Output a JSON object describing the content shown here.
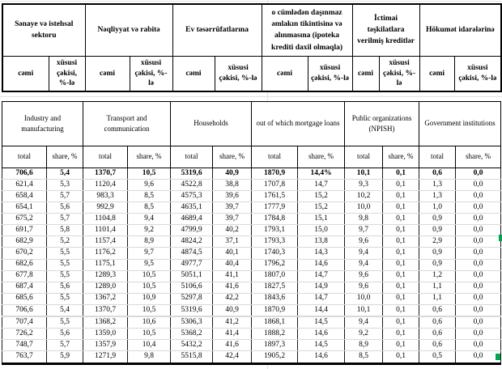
{
  "az_header": {
    "groups": [
      "Sənaye və istehsal sektoru",
      "Nəqliyyat və rabitə",
      "Ev təsərrüfatlarına",
      "o cümlədən daşınmaz əmlakın tikintisinə və alınmasına (ipoteka krediti daxil olmaqla)",
      "İctimai təşkilatlara verilmiş kreditlər",
      "Hökumət idarələrinə"
    ],
    "sub": [
      "cəmi",
      "xüsusi çəkisi, %-lə"
    ]
  },
  "en_header": {
    "groups": [
      "Industry and manufacturing",
      "Transport and communication",
      "Households",
      "out of which mortgage loans",
      "Public organizations (NPISH)",
      "Government institutions"
    ],
    "sub": [
      "total",
      "share, %"
    ]
  },
  "table": {
    "bold_row_index": 0,
    "separator_row_index": 13,
    "rows": [
      [
        "706,6",
        "5,4",
        "1370,7",
        "10,5",
        "5319,6",
        "40,9",
        "1870,9",
        "14,4%",
        "10,1",
        "0,1",
        "0,6",
        "0,0"
      ],
      [
        "621,4",
        "5,3",
        "1120,4",
        "9,6",
        "4522,8",
        "38,8",
        "1707,8",
        "14,7",
        "9,3",
        "0,1",
        "1,3",
        "0,0"
      ],
      [
        "658,4",
        "5,7",
        "983,3",
        "8,5",
        "4575,3",
        "39,6",
        "1761,5",
        "15,2",
        "10,2",
        "0,1",
        "1,3",
        "0,0"
      ],
      [
        "654,1",
        "5,6",
        "992,9",
        "8,5",
        "4635,1",
        "39,7",
        "1777,9",
        "15,2",
        "10,0",
        "0,1",
        "1,0",
        "0,0"
      ],
      [
        "675,2",
        "5,7",
        "1104,8",
        "9,4",
        "4689,4",
        "39,7",
        "1784,8",
        "15,1",
        "9,8",
        "0,1",
        "0,9",
        "0,0"
      ],
      [
        "691,7",
        "5,8",
        "1101,4",
        "9,2",
        "4799,9",
        "40,2",
        "1793,1",
        "15,0",
        "9,7",
        "0,1",
        "0,9",
        "0,0"
      ],
      [
        "682,9",
        "5,2",
        "1157,4",
        "8,9",
        "4824,2",
        "37,1",
        "1793,3",
        "13,8",
        "9,6",
        "0,1",
        "2,9",
        "0,0"
      ],
      [
        "670,2",
        "5,5",
        "1176,2",
        "9,7",
        "4874,5",
        "40,1",
        "1740,3",
        "14,3",
        "9,4",
        "0,1",
        "0,9",
        "0,0"
      ],
      [
        "682,6",
        "5,5",
        "1175,1",
        "9,5",
        "4977,7",
        "40,4",
        "1796,2",
        "14,6",
        "9,4",
        "0,1",
        "0,9",
        "0,0"
      ],
      [
        "677,8",
        "5,5",
        "1289,3",
        "10,5",
        "5051,1",
        "41,1",
        "1807,0",
        "14,7",
        "9,6",
        "0,1",
        "1,2",
        "0,0"
      ],
      [
        "687,4",
        "5,6",
        "1289,0",
        "10,5",
        "5106,6",
        "41,6",
        "1827,5",
        "14,9",
        "9,6",
        "0,1",
        "1,1",
        "0,0"
      ],
      [
        "685,6",
        "5,5",
        "1367,2",
        "10,9",
        "5297,8",
        "42,2",
        "1843,6",
        "14,7",
        "10,0",
        "0,1",
        "1,1",
        "0,0"
      ],
      [
        "706,6",
        "5,4",
        "1370,7",
        "10,5",
        "5319,6",
        "40,9",
        "1870,9",
        "14,4",
        "10,1",
        "0,1",
        "0,6",
        "0,0"
      ],
      [
        "",
        "",
        "",
        "",
        "",
        "",
        "",
        "",
        "",
        "",
        "",
        ""
      ],
      [
        "707,4",
        "5,5",
        "1368,2",
        "10,6",
        "5306,3",
        "41,2",
        "1868,1",
        "14,5",
        "9,4",
        "0,1",
        "0,6",
        "0,0"
      ],
      [
        "726,2",
        "5,6",
        "1359,0",
        "10,5",
        "5368,2",
        "41,4",
        "1888,2",
        "14,6",
        "9,2",
        "0,1",
        "0,6",
        "0,0"
      ],
      [
        "748,7",
        "5,7",
        "1357,9",
        "10,4",
        "5432,2",
        "41,6",
        "1897,3",
        "14,5",
        "8,9",
        "0,1",
        "0,6",
        "0,0"
      ],
      [
        "763,7",
        "5,9",
        "1271,9",
        "9,8",
        "5515,8",
        "42,4",
        "1905,2",
        "14,6",
        "8,5",
        "0,1",
        "0,5",
        "0,0"
      ]
    ]
  },
  "colors": {
    "border": "#000000",
    "row_gridline": "#d9d9d9",
    "sheet_gridline": "#e2e2e2",
    "selection_green": "#00a550",
    "text": "#000000"
  }
}
